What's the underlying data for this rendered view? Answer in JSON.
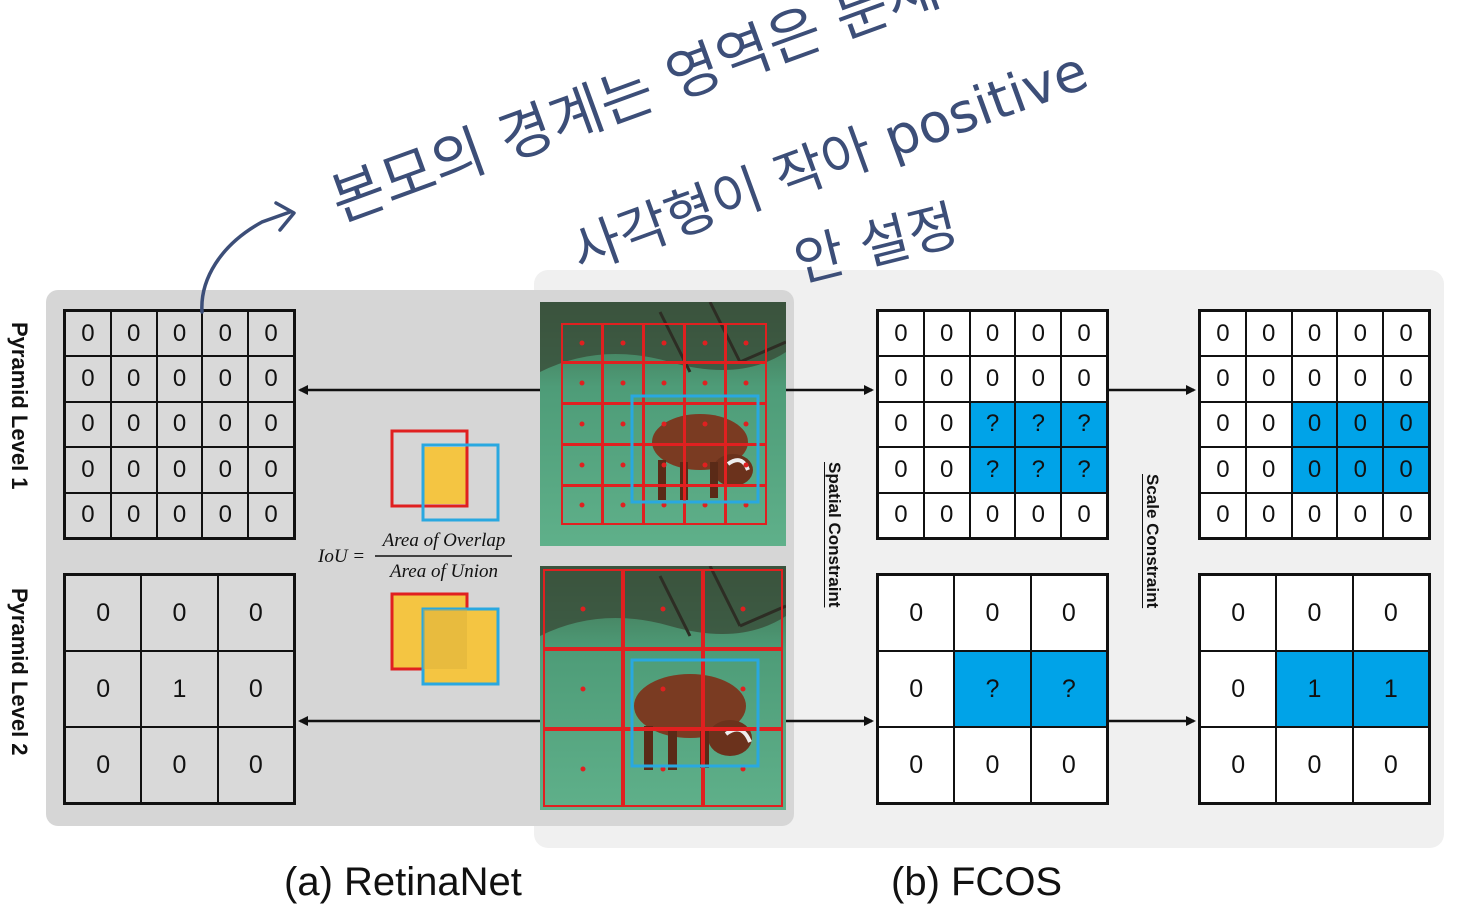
{
  "retinanet": {
    "caption": "(a) RetinaNet",
    "level1_label": "Pyramid Level 1",
    "level2_label": "Pyramid Level 2",
    "level1_grid": [
      [
        "0",
        "0",
        "0",
        "0",
        "0"
      ],
      [
        "0",
        "0",
        "0",
        "0",
        "0"
      ],
      [
        "0",
        "0",
        "0",
        "0",
        "0"
      ],
      [
        "0",
        "0",
        "0",
        "0",
        "0"
      ],
      [
        "0",
        "0",
        "0",
        "0",
        "0"
      ]
    ],
    "level2_grid": [
      [
        "0",
        "0",
        "0"
      ],
      [
        "0",
        "1",
        "0"
      ],
      [
        "0",
        "0",
        "0"
      ]
    ],
    "level2_highlight": [
      [
        1,
        1
      ]
    ],
    "iou": {
      "lhs": "IoU =",
      "numerator": "Area of Overlap",
      "denominator": "Area of Union"
    }
  },
  "fcos": {
    "caption": "(b) FCOS",
    "spatial_constraint": "Spatial Constraint",
    "scale_constraint": "Scale Constraint",
    "spatial_level1": [
      [
        "0",
        "0",
        "0",
        "0",
        "0"
      ],
      [
        "0",
        "0",
        "0",
        "0",
        "0"
      ],
      [
        "0",
        "0",
        "?",
        "?",
        "?"
      ],
      [
        "0",
        "0",
        "?",
        "?",
        "?"
      ],
      [
        "0",
        "0",
        "0",
        "0",
        "0"
      ]
    ],
    "spatial_level1_highlight": [
      [
        2,
        2
      ],
      [
        2,
        3
      ],
      [
        2,
        4
      ],
      [
        3,
        2
      ],
      [
        3,
        3
      ],
      [
        3,
        4
      ]
    ],
    "spatial_level2": [
      [
        "0",
        "0",
        "0"
      ],
      [
        "0",
        "?",
        "?"
      ],
      [
        "0",
        "0",
        "0"
      ]
    ],
    "spatial_level2_highlight": [
      [
        1,
        1
      ],
      [
        1,
        2
      ]
    ],
    "scale_level1": [
      [
        "0",
        "0",
        "0",
        "0",
        "0"
      ],
      [
        "0",
        "0",
        "0",
        "0",
        "0"
      ],
      [
        "0",
        "0",
        "0",
        "0",
        "0"
      ],
      [
        "0",
        "0",
        "0",
        "0",
        "0"
      ],
      [
        "0",
        "0",
        "0",
        "0",
        "0"
      ]
    ],
    "scale_level1_highlight": [
      [
        2,
        2
      ],
      [
        2,
        3
      ],
      [
        2,
        4
      ],
      [
        3,
        2
      ],
      [
        3,
        3
      ],
      [
        3,
        4
      ]
    ],
    "scale_level2": [
      [
        "0",
        "0",
        "0"
      ],
      [
        "0",
        "1",
        "1"
      ],
      [
        "0",
        "0",
        "0"
      ]
    ],
    "scale_level2_highlight": [
      [
        1,
        1
      ],
      [
        1,
        2
      ]
    ]
  },
  "annotations": {
    "line1": "본모의 경계는 영역은 문제",
    "line2": "사각형이 작아 positive",
    "line3": "안 설정",
    "ink_color": "#3c4e78"
  },
  "colors": {
    "highlight": "#00a3e8",
    "anchor_box": "#e02020",
    "gt_box": "#29a8e0",
    "overlap_fill": "#f4c542"
  }
}
